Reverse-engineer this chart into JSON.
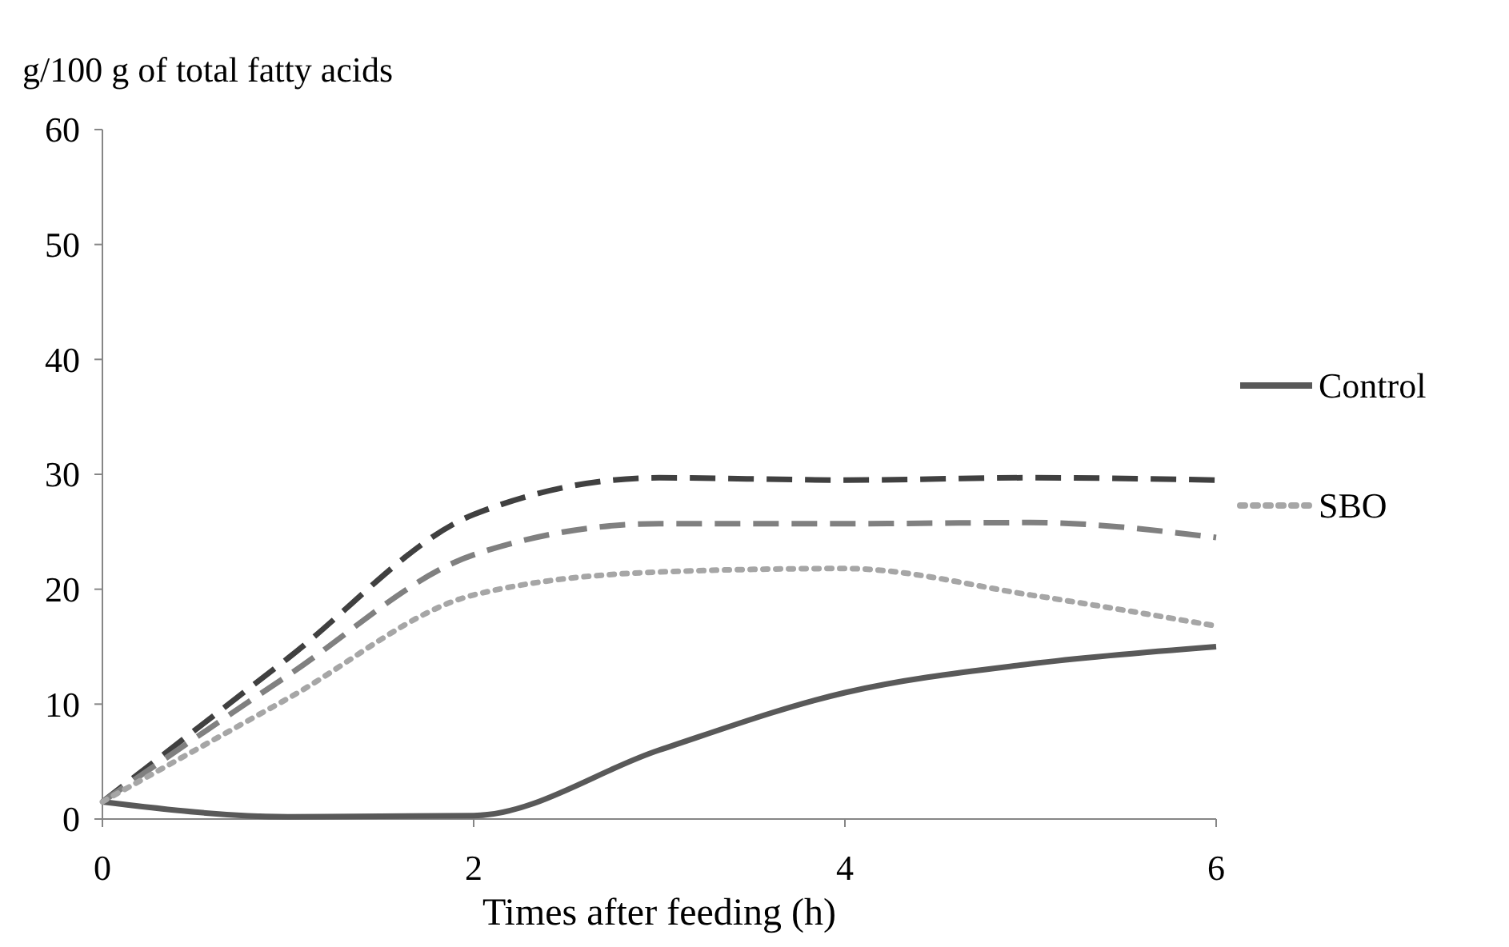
{
  "chart_data": {
    "type": "line",
    "ylabel": "g/100 g of total fatty acids",
    "xlabel": "Times after feeding (h)",
    "x": [
      0,
      1,
      2,
      3,
      4,
      5,
      6
    ],
    "series": [
      {
        "name": "Control",
        "color": "#595959",
        "line_style": "solid",
        "values": [
          1.5,
          0.2,
          0.3,
          6,
          11,
          13.5,
          15
        ]
      },
      {
        "color": "#404040",
        "line_style": "dashed",
        "values": [
          1.5,
          14,
          26.5,
          29.7,
          29.5,
          29.7,
          29.5
        ]
      },
      {
        "color": "#808080",
        "line_style": "dashed",
        "values": [
          1.5,
          12.5,
          23,
          25.7,
          25.7,
          25.8,
          24.5
        ]
      },
      {
        "name": "SBO",
        "color": "#a6a6a6",
        "line_style": "dotted",
        "values": [
          1.5,
          10.5,
          19.5,
          21.5,
          21.8,
          19.5,
          16.8
        ]
      }
    ],
    "xlim": [
      0,
      6
    ],
    "xticks": [
      0,
      2,
      4,
      6
    ],
    "ylim": [
      0,
      60
    ],
    "yticks": [
      0,
      10,
      20,
      30,
      40,
      50,
      60
    ],
    "grid": false,
    "legend": "right",
    "marker": "none"
  }
}
